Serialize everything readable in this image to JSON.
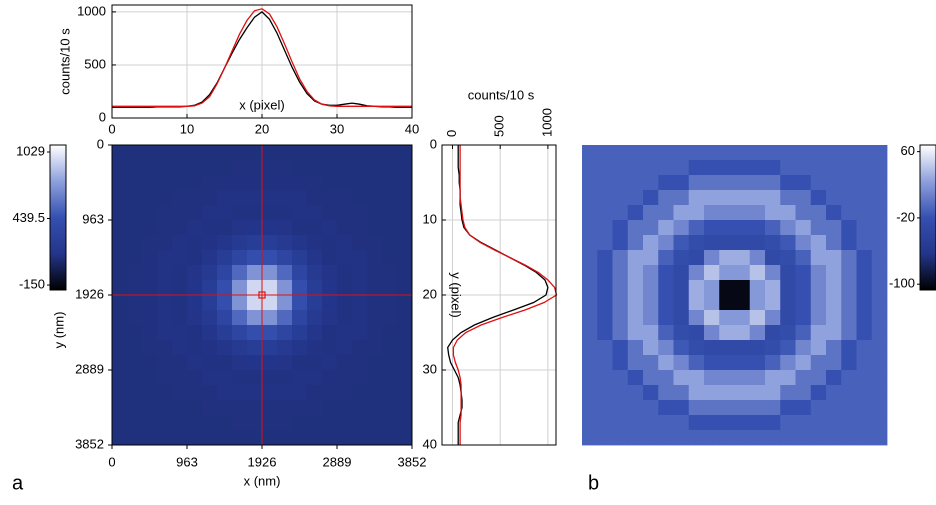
{
  "chart_data": [
    {
      "type": "line",
      "orientation": "horizontal",
      "xlabel": "x (pixel)",
      "ylabel": "counts/10 s",
      "x": [
        0,
        1,
        2,
        3,
        4,
        5,
        6,
        7,
        8,
        9,
        10,
        11,
        12,
        13,
        14,
        15,
        16,
        17,
        18,
        19,
        20,
        21,
        22,
        23,
        24,
        25,
        26,
        27,
        28,
        29,
        30,
        31,
        32,
        33,
        34,
        35,
        36,
        37,
        38,
        39,
        40
      ],
      "series": [
        {
          "color": "#000000",
          "values": [
            100,
            100,
            100,
            100,
            100,
            100,
            105,
            105,
            105,
            105,
            110,
            120,
            150,
            220,
            330,
            470,
            610,
            740,
            850,
            950,
            1000,
            930,
            800,
            640,
            480,
            340,
            230,
            160,
            130,
            120,
            120,
            130,
            140,
            130,
            115,
            110,
            105,
            105,
            100,
            100,
            100
          ]
        },
        {
          "color": "#e01010",
          "values": [
            110,
            110,
            110,
            110,
            110,
            110,
            110,
            110,
            110,
            110,
            110,
            115,
            140,
            200,
            320,
            470,
            630,
            790,
            920,
            1010,
            1029,
            980,
            860,
            700,
            530,
            370,
            250,
            170,
            130,
            115,
            110,
            110,
            110,
            110,
            110,
            110,
            110,
            110,
            110,
            110,
            110
          ]
        }
      ],
      "xlim": [
        0,
        40
      ],
      "xticks": [
        0,
        10,
        20,
        30,
        40
      ],
      "ylim": [
        0,
        1065
      ],
      "yticks": [
        0,
        500,
        1000
      ],
      "grid": true
    },
    {
      "type": "heatmap",
      "xlabel": "x (nm)",
      "ylabel": "y (nm)",
      "panel_label": "a",
      "xlim": [
        0,
        3852
      ],
      "ylim": [
        0,
        3852
      ],
      "xticks": [
        0,
        963,
        1926,
        2889,
        3852
      ],
      "yticks": [
        0,
        963,
        1926,
        2889,
        3852
      ],
      "crosshair": [
        1926,
        1926
      ],
      "crosshair_color": "#e01010",
      "clim": [
        -194,
        1091
      ],
      "cticks": [
        1029,
        439.5,
        -150
      ],
      "colormap": [
        "#000000",
        "#23358a",
        "#3550b0",
        "#8ea0dc",
        "#ffffff"
      ],
      "z": [
        [
          95,
          95,
          95,
          95,
          95,
          95,
          95,
          95,
          95,
          95,
          95,
          95,
          95,
          95,
          95,
          95,
          95,
          95,
          95,
          95
        ],
        [
          95,
          95,
          95,
          95,
          95,
          95,
          95,
          95,
          105,
          105,
          105,
          105,
          95,
          95,
          95,
          95,
          95,
          95,
          95,
          95
        ],
        [
          95,
          95,
          95,
          95,
          95,
          95,
          105,
          105,
          105,
          105,
          105,
          105,
          105,
          105,
          95,
          95,
          95,
          95,
          95,
          95
        ],
        [
          95,
          95,
          95,
          95,
          105,
          105,
          105,
          115,
          115,
          115,
          115,
          115,
          115,
          105,
          105,
          105,
          95,
          95,
          95,
          95
        ],
        [
          95,
          95,
          95,
          105,
          105,
          105,
          115,
          115,
          110,
          110,
          110,
          110,
          115,
          115,
          105,
          105,
          105,
          95,
          95,
          95
        ],
        [
          95,
          95,
          95,
          105,
          105,
          115,
          110,
          112,
          124,
          133,
          133,
          124,
          112,
          110,
          115,
          105,
          105,
          95,
          95,
          95
        ],
        [
          95,
          95,
          105,
          105,
          115,
          110,
          117,
          145,
          187,
          221,
          221,
          187,
          145,
          117,
          110,
          115,
          105,
          105,
          95,
          95
        ],
        [
          95,
          95,
          105,
          115,
          115,
          112,
          145,
          221,
          332,
          422,
          422,
          332,
          221,
          145,
          112,
          115,
          115,
          105,
          95,
          95
        ],
        [
          95,
          105,
          105,
          115,
          110,
          124,
          187,
          332,
          546,
          718,
          718,
          546,
          332,
          187,
          124,
          110,
          115,
          105,
          105,
          95
        ],
        [
          95,
          105,
          105,
          115,
          110,
          133,
          221,
          422,
          718,
          957,
          957,
          718,
          422,
          221,
          133,
          110,
          115,
          105,
          105,
          95
        ],
        [
          95,
          105,
          105,
          115,
          110,
          133,
          221,
          422,
          718,
          957,
          957,
          718,
          422,
          221,
          133,
          110,
          115,
          105,
          105,
          95
        ],
        [
          95,
          105,
          105,
          115,
          110,
          124,
          187,
          332,
          546,
          718,
          718,
          546,
          332,
          187,
          124,
          110,
          115,
          105,
          105,
          95
        ],
        [
          95,
          95,
          105,
          115,
          115,
          112,
          145,
          221,
          332,
          422,
          422,
          332,
          221,
          145,
          112,
          115,
          115,
          105,
          95,
          95
        ],
        [
          95,
          95,
          105,
          105,
          115,
          110,
          117,
          145,
          187,
          221,
          221,
          187,
          145,
          117,
          110,
          115,
          105,
          105,
          95,
          95
        ],
        [
          95,
          95,
          95,
          105,
          105,
          115,
          110,
          112,
          124,
          133,
          133,
          124,
          112,
          110,
          115,
          105,
          105,
          95,
          95,
          95
        ],
        [
          95,
          95,
          95,
          105,
          105,
          105,
          115,
          115,
          110,
          110,
          110,
          110,
          115,
          115,
          105,
          105,
          105,
          95,
          95,
          95
        ],
        [
          95,
          95,
          95,
          95,
          105,
          105,
          105,
          115,
          115,
          115,
          115,
          115,
          115,
          105,
          105,
          105,
          95,
          95,
          95,
          95
        ],
        [
          95,
          95,
          95,
          95,
          95,
          95,
          105,
          105,
          105,
          105,
          105,
          105,
          105,
          105,
          95,
          95,
          95,
          95,
          95,
          95
        ],
        [
          95,
          95,
          95,
          95,
          95,
          95,
          95,
          95,
          105,
          105,
          105,
          105,
          95,
          95,
          95,
          95,
          95,
          95,
          95,
          95
        ],
        [
          95,
          95,
          95,
          95,
          95,
          95,
          95,
          95,
          95,
          95,
          95,
          95,
          95,
          95,
          95,
          95,
          95,
          95,
          95,
          95
        ]
      ]
    },
    {
      "type": "line",
      "orientation": "vertical",
      "xlabel": "y (pixel)",
      "ylabel": "counts/10 s",
      "x": [
        0,
        1,
        2,
        3,
        4,
        5,
        6,
        7,
        8,
        9,
        10,
        11,
        12,
        13,
        14,
        15,
        16,
        17,
        18,
        19,
        20,
        21,
        22,
        23,
        24,
        25,
        26,
        27,
        28,
        29,
        30,
        31,
        32,
        33,
        34,
        35,
        36,
        37,
        38,
        39,
        40
      ],
      "series": [
        {
          "color": "#000000",
          "values": [
            60,
            60,
            60,
            60,
            70,
            70,
            80,
            80,
            80,
            90,
            100,
            120,
            180,
            300,
            450,
            600,
            750,
            880,
            970,
            1000,
            980,
            850,
            640,
            420,
            230,
            90,
            0,
            -50,
            -40,
            -20,
            20,
            60,
            80,
            90,
            100,
            100,
            80,
            60,
            60,
            60,
            60
          ]
        },
        {
          "color": "#e01010",
          "values": [
            80,
            80,
            80,
            80,
            80,
            80,
            80,
            80,
            90,
            100,
            110,
            130,
            180,
            290,
            440,
            600,
            760,
            900,
            1000,
            1070,
            1090,
            960,
            760,
            520,
            300,
            140,
            50,
            10,
            10,
            30,
            60,
            80,
            90,
            90,
            90,
            90,
            90,
            80,
            80,
            80,
            80
          ]
        }
      ],
      "xlim": [
        0,
        40
      ],
      "xticks": [
        0,
        10,
        20,
        30,
        40
      ],
      "ylim": [
        -110,
        1085
      ],
      "yticks": [
        0,
        500,
        1000
      ],
      "grid": true
    },
    {
      "type": "heatmap",
      "panel_label": "b",
      "clim": [
        -107,
        68
      ],
      "cticks": [
        60,
        -20,
        -100
      ],
      "colormap": [
        "#000000",
        "#23358a",
        "#3550b0",
        "#8ea0dc",
        "#ffffff"
      ],
      "z": [
        [
          -10,
          -10,
          -10,
          -10,
          -10,
          -10,
          -10,
          -10,
          -10,
          -10,
          -10,
          -10,
          -10,
          -10,
          -10,
          -10,
          -10,
          -10,
          -10,
          -10
        ],
        [
          -10,
          -10,
          -10,
          -10,
          -10,
          -10,
          -10,
          -20,
          -20,
          -20,
          -20,
          -20,
          -20,
          -10,
          -10,
          -10,
          -10,
          -10,
          -10,
          -10
        ],
        [
          -10,
          -10,
          -10,
          -10,
          -10,
          -20,
          -20,
          0,
          0,
          0,
          0,
          0,
          0,
          -20,
          -20,
          -10,
          -10,
          -10,
          -10,
          -10
        ],
        [
          -10,
          -10,
          -10,
          -10,
          -20,
          0,
          0,
          25,
          25,
          25,
          25,
          25,
          25,
          0,
          0,
          -20,
          -10,
          -10,
          -10,
          -10
        ],
        [
          -10,
          -10,
          -10,
          -20,
          0,
          0,
          25,
          25,
          10,
          10,
          10,
          10,
          25,
          25,
          0,
          0,
          -20,
          -10,
          -10,
          -10
        ],
        [
          -10,
          -10,
          -20,
          0,
          0,
          25,
          10,
          -10,
          -20,
          -20,
          -20,
          -20,
          -10,
          10,
          25,
          0,
          0,
          -20,
          -10,
          -10
        ],
        [
          -10,
          -10,
          -20,
          0,
          25,
          10,
          -15,
          -25,
          -30,
          -30,
          -30,
          -30,
          -25,
          -15,
          10,
          25,
          0,
          -20,
          -10,
          -10
        ],
        [
          -10,
          -20,
          0,
          25,
          25,
          -10,
          -25,
          -30,
          10,
          30,
          30,
          10,
          -30,
          -25,
          -10,
          25,
          25,
          0,
          -20,
          -10
        ],
        [
          -10,
          -20,
          0,
          25,
          10,
          -20,
          -30,
          10,
          40,
          20,
          20,
          40,
          10,
          -30,
          -20,
          10,
          25,
          0,
          -20,
          -10
        ],
        [
          -10,
          -20,
          0,
          25,
          10,
          -20,
          -30,
          30,
          20,
          -100,
          -100,
          20,
          30,
          -30,
          -20,
          10,
          25,
          0,
          -20,
          -10
        ],
        [
          -10,
          -20,
          0,
          25,
          10,
          -20,
          -30,
          30,
          20,
          -100,
          -100,
          20,
          30,
          -30,
          -20,
          10,
          25,
          0,
          -20,
          -10
        ],
        [
          -10,
          -20,
          0,
          25,
          10,
          -20,
          -30,
          10,
          40,
          20,
          20,
          40,
          10,
          -30,
          -20,
          10,
          25,
          0,
          -20,
          -10
        ],
        [
          -10,
          -20,
          0,
          25,
          25,
          -10,
          -25,
          -30,
          10,
          30,
          30,
          10,
          -30,
          -25,
          -10,
          25,
          25,
          0,
          -20,
          -10
        ],
        [
          -10,
          -10,
          -20,
          0,
          25,
          10,
          -15,
          -25,
          -30,
          -30,
          -30,
          -30,
          -25,
          -15,
          10,
          25,
          0,
          -20,
          -10,
          -10
        ],
        [
          -10,
          -10,
          -20,
          0,
          0,
          25,
          10,
          -10,
          -20,
          -20,
          -20,
          -20,
          -10,
          10,
          25,
          0,
          0,
          -20,
          -10,
          -10
        ],
        [
          -10,
          -10,
          -10,
          -20,
          0,
          0,
          25,
          25,
          10,
          10,
          10,
          10,
          25,
          25,
          0,
          0,
          -20,
          -10,
          -10,
          -10
        ],
        [
          -10,
          -10,
          -10,
          -10,
          -20,
          0,
          0,
          25,
          25,
          25,
          25,
          25,
          25,
          0,
          0,
          -20,
          -10,
          -10,
          -10,
          -10
        ],
        [
          -10,
          -10,
          -10,
          -10,
          -10,
          -20,
          -20,
          0,
          0,
          0,
          0,
          0,
          0,
          -20,
          -20,
          -10,
          -10,
          -10,
          -10,
          -10
        ],
        [
          -10,
          -10,
          -10,
          -10,
          -10,
          -10,
          -10,
          -20,
          -20,
          -20,
          -20,
          -20,
          -20,
          -10,
          -10,
          -10,
          -10,
          -10,
          -10,
          -10
        ],
        [
          -10,
          -10,
          -10,
          -10,
          -10,
          -10,
          -10,
          -10,
          -10,
          -10,
          -10,
          -10,
          -10,
          -10,
          -10,
          -10,
          -10,
          -10,
          -10,
          -10
        ]
      ]
    }
  ]
}
